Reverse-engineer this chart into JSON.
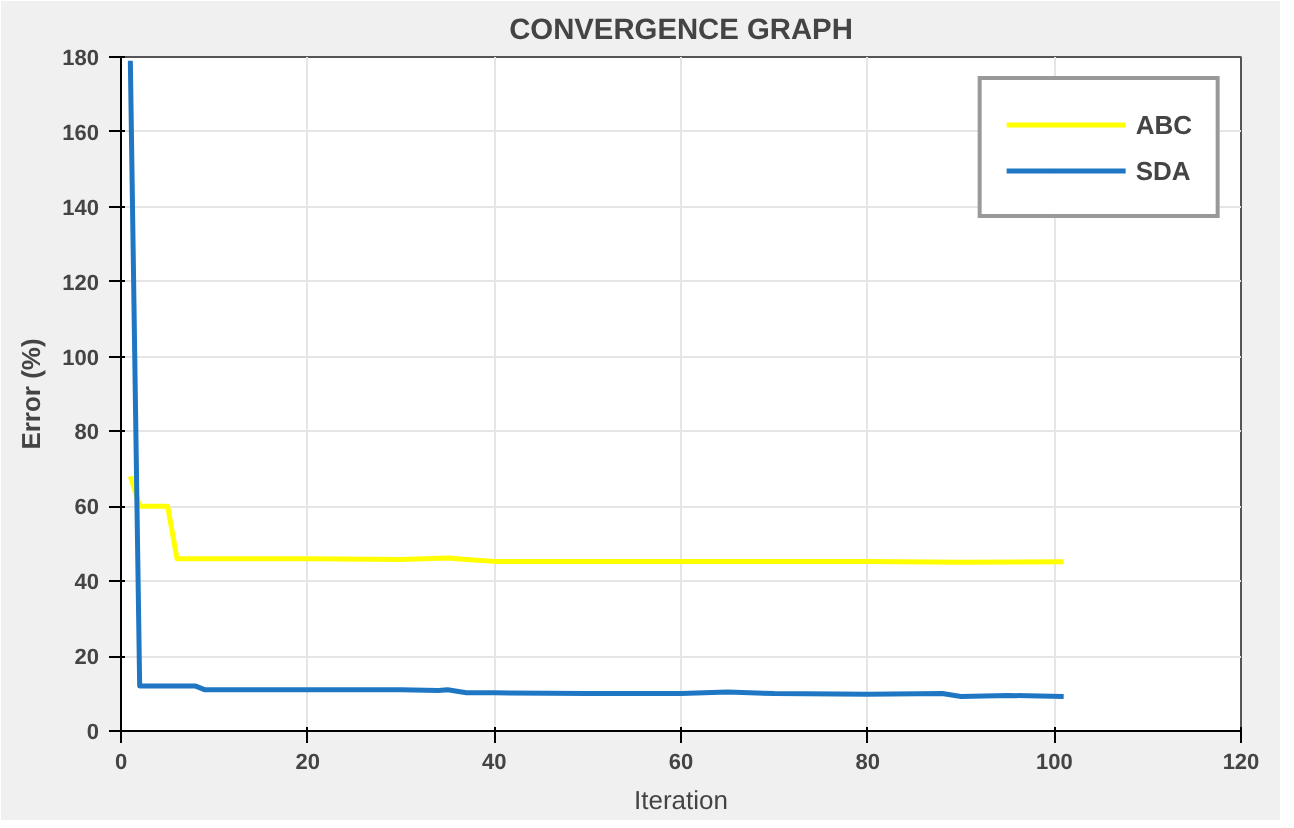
{
  "chart_data": {
    "type": "line",
    "title": "CONVERGENCE GRAPH",
    "xlabel": "Iteration",
    "ylabel": "Error (%)",
    "xlim": [
      0,
      120
    ],
    "ylim": [
      0,
      180
    ],
    "xticks": [
      0,
      20,
      40,
      60,
      80,
      100,
      120
    ],
    "yticks": [
      0,
      20,
      40,
      60,
      80,
      100,
      120,
      140,
      160,
      180
    ],
    "grid": true,
    "legend": "top right",
    "marker": "none",
    "line_style": "solid",
    "series": [
      {
        "name": "ABC",
        "color": "#ffff00",
        "x": [
          1,
          2,
          5,
          6,
          20,
          30,
          35,
          37,
          40,
          60,
          80,
          90,
          101
        ],
        "values": [
          68,
          60,
          60,
          46,
          46,
          45.8,
          46.2,
          45.8,
          45.3,
          45.3,
          45.3,
          45.1,
          45.2
        ]
      },
      {
        "name": "SDA",
        "color": "#1f77c4",
        "x": [
          1,
          2,
          8,
          9,
          20,
          30,
          34,
          35,
          37,
          40,
          50,
          60,
          65,
          70,
          80,
          88,
          90,
          95,
          101
        ],
        "values": [
          179,
          12,
          12,
          11,
          11,
          11,
          10.8,
          11,
          10.2,
          10.2,
          10,
          10,
          10.4,
          10,
          9.8,
          10,
          9.2,
          9.5,
          9.2
        ]
      }
    ]
  }
}
